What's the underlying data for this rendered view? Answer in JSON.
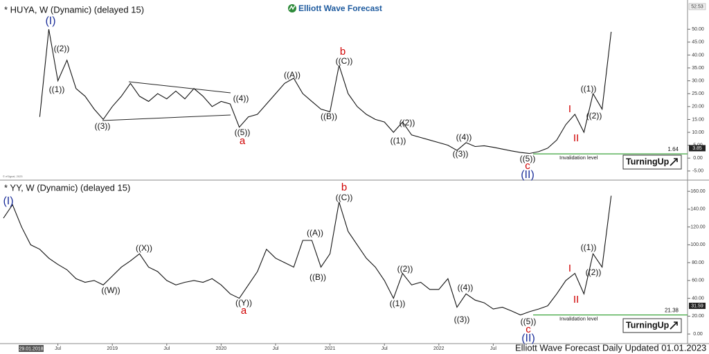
{
  "header": {
    "logo": "Elliott Wave Forecast",
    "copyright": "© eSignal, 2023"
  },
  "footer": "Elliott Wave Forecast Daily Updated 01.01.2023",
  "start_date": "29.01.2018",
  "chart_data": [
    {
      "type": "line",
      "title": "* HUYA, W (Dynamic) (delayed 15)",
      "color": "#111111",
      "projection_color": "#111111",
      "values": [
        null,
        null,
        null,
        null,
        16,
        50,
        30,
        38,
        27,
        24,
        19,
        15,
        20,
        24,
        29,
        24,
        22,
        25,
        23,
        26,
        23,
        27,
        24,
        20,
        22,
        21,
        12,
        16,
        17,
        21,
        25,
        29,
        31,
        25,
        22,
        19,
        18,
        36,
        25,
        20,
        17,
        15,
        14,
        10,
        14,
        9,
        8,
        7,
        6,
        5,
        3,
        6,
        4.5,
        4.8,
        4.2,
        3.5,
        2.8,
        2.2,
        1.8,
        2.5,
        3.85,
        null,
        null,
        null,
        null,
        null,
        null,
        null
      ],
      "projection": [
        null,
        null,
        null,
        null,
        null,
        null,
        null,
        null,
        null,
        null,
        null,
        null,
        null,
        null,
        null,
        null,
        null,
        null,
        null,
        null,
        null,
        null,
        null,
        null,
        null,
        null,
        null,
        null,
        null,
        null,
        null,
        null,
        null,
        null,
        null,
        null,
        null,
        null,
        null,
        null,
        null,
        null,
        null,
        null,
        null,
        null,
        null,
        null,
        null,
        null,
        null,
        null,
        null,
        null,
        null,
        null,
        null,
        null,
        null,
        null,
        3.85,
        7,
        13,
        17,
        10,
        25,
        19,
        49
      ],
      "ylim": [
        -8,
        60
      ],
      "yticks": [
        {
          "value": -5,
          "label": "-5.00"
        },
        {
          "value": 0,
          "label": "0.00"
        },
        {
          "value": 5,
          "label": "5.00"
        },
        {
          "value": 10,
          "label": "10.00"
        },
        {
          "value": 15,
          "label": "15.00"
        },
        {
          "value": 20,
          "label": "20.00"
        },
        {
          "value": 25,
          "label": "25.00"
        },
        {
          "value": 30,
          "label": "30.00"
        },
        {
          "value": 35,
          "label": "35.00"
        },
        {
          "value": 40,
          "label": "40.00"
        },
        {
          "value": 45,
          "label": "45.00"
        },
        {
          "value": 50,
          "label": "50.00"
        }
      ],
      "top_tag": "52.53",
      "price_tag": {
        "value": 3.85,
        "label": "3.85"
      },
      "invalidation": {
        "value": 1.64,
        "label": "1.64",
        "text": "Invalidation level",
        "color": "#3aa33a"
      },
      "badge": "TurningUp",
      "annotations": [
        {
          "text": "(I)",
          "color": "#1c2f9a"
        },
        {
          "text": "((2))",
          "color": "#111111"
        },
        {
          "text": "((1))",
          "color": "#111111"
        },
        {
          "text": "((3))",
          "color": "#111111"
        },
        {
          "text": "((4))",
          "color": "#111111"
        },
        {
          "text": "((5))",
          "color": "#111111"
        },
        {
          "text": "a",
          "color": "#d00000"
        },
        {
          "text": "((A))",
          "color": "#111111"
        },
        {
          "text": "((B))",
          "color": "#111111"
        },
        {
          "text": "((C))",
          "color": "#111111"
        },
        {
          "text": "b",
          "color": "#d00000"
        },
        {
          "text": "((1))",
          "color": "#111111"
        },
        {
          "text": "((2))",
          "color": "#111111"
        },
        {
          "text": "((3))",
          "color": "#111111"
        },
        {
          "text": "((4))",
          "color": "#111111"
        },
        {
          "text": "((5))",
          "color": "#111111"
        },
        {
          "text": "c",
          "color": "#d00000"
        },
        {
          "text": "(II)",
          "color": "#1c2f9a"
        },
        {
          "text": "I",
          "color": "#d00000"
        },
        {
          "text": "II",
          "color": "#d00000"
        },
        {
          "text": "((1))",
          "color": "#111111"
        },
        {
          "text": "((2))",
          "color": "#111111"
        }
      ]
    },
    {
      "type": "line",
      "title": "* YY, W (Dynamic) (delayed 15)",
      "color": "#111111",
      "projection_color": "#111111",
      "categories": [
        null,
        null,
        null,
        null,
        null,
        null,
        "Jul",
        null,
        null,
        null,
        null,
        null,
        "2019",
        null,
        null,
        null,
        null,
        null,
        "Jul",
        null,
        null,
        null,
        null,
        null,
        "2020",
        null,
        null,
        null,
        null,
        null,
        "Jul",
        null,
        null,
        null,
        null,
        null,
        "2021",
        null,
        null,
        null,
        null,
        null,
        "Jul",
        null,
        null,
        null,
        null,
        null,
        "2022",
        null,
        null,
        null,
        null,
        null,
        "Jul",
        null,
        null,
        null,
        null,
        null,
        null,
        null,
        null,
        null,
        null,
        null,
        null,
        null
      ],
      "values": [
        130,
        145,
        120,
        100,
        95,
        85,
        78,
        72,
        62,
        58,
        60,
        55,
        65,
        75,
        82,
        90,
        75,
        70,
        60,
        55,
        58,
        60,
        58,
        62,
        55,
        45,
        40,
        55,
        70,
        95,
        85,
        80,
        75,
        105,
        105,
        75,
        90,
        148,
        115,
        100,
        85,
        75,
        60,
        40,
        68,
        55,
        58,
        50,
        50,
        62,
        30,
        45,
        38,
        35,
        28,
        30,
        26,
        21.38,
        25,
        28,
        31.59,
        null,
        null,
        null,
        null,
        null,
        null,
        null
      ],
      "projection": [
        null,
        null,
        null,
        null,
        null,
        null,
        null,
        null,
        null,
        null,
        null,
        null,
        null,
        null,
        null,
        null,
        null,
        null,
        null,
        null,
        null,
        null,
        null,
        null,
        null,
        null,
        null,
        null,
        null,
        null,
        null,
        null,
        null,
        null,
        null,
        null,
        null,
        null,
        null,
        null,
        null,
        null,
        null,
        null,
        null,
        null,
        null,
        null,
        null,
        null,
        null,
        null,
        null,
        null,
        null,
        null,
        null,
        null,
        null,
        null,
        31.59,
        45,
        60,
        68,
        45,
        90,
        75,
        155
      ],
      "ylim": [
        -10,
        171
      ],
      "yticks": [
        {
          "value": 0,
          "label": "0.00"
        },
        {
          "value": 20,
          "label": "20.00"
        },
        {
          "value": 40,
          "label": "40.00"
        },
        {
          "value": 60,
          "label": "60.00"
        },
        {
          "value": 80,
          "label": "80.00"
        },
        {
          "value": 100,
          "label": "100.00"
        },
        {
          "value": 120,
          "label": "120.00"
        },
        {
          "value": 140,
          "label": "140.00"
        },
        {
          "value": 160,
          "label": "160.00"
        }
      ],
      "price_tag": {
        "value": 31.59,
        "label": "31.59"
      },
      "invalidation": {
        "value": 21.38,
        "label": "21.38",
        "text": "Invalidation level",
        "color": "#3aa33a"
      },
      "badge": "TurningUp",
      "annotations": [
        {
          "text": "(I)",
          "color": "#1c2f9a"
        },
        {
          "text": "((X))",
          "color": "#111111"
        },
        {
          "text": "((W))",
          "color": "#111111"
        },
        {
          "text": "((Y))",
          "color": "#111111"
        },
        {
          "text": "a",
          "color": "#d00000"
        },
        {
          "text": "((A))",
          "color": "#111111"
        },
        {
          "text": "((B))",
          "color": "#111111"
        },
        {
          "text": "((C))",
          "color": "#111111"
        },
        {
          "text": "b",
          "color": "#d00000"
        },
        {
          "text": "((2))",
          "color": "#111111"
        },
        {
          "text": "((1))",
          "color": "#111111"
        },
        {
          "text": "((4))",
          "color": "#111111"
        },
        {
          "text": "((3))",
          "color": "#111111"
        },
        {
          "text": "((5))",
          "color": "#111111"
        },
        {
          "text": "c",
          "color": "#d00000"
        },
        {
          "text": "(II)",
          "color": "#1c2f9a"
        },
        {
          "text": "I",
          "color": "#d00000"
        },
        {
          "text": "II",
          "color": "#d00000"
        },
        {
          "text": "((1))",
          "color": "#111111"
        },
        {
          "text": "((2))",
          "color": "#111111"
        }
      ]
    }
  ]
}
